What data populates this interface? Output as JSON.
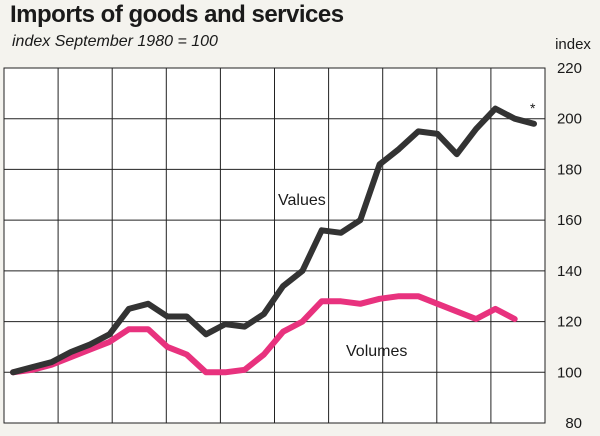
{
  "header": {
    "title": "Imports of goods and services",
    "subtitle": "index September 1980 = 100"
  },
  "chart_data": {
    "type": "line",
    "title": "Imports of goods and services",
    "subtitle": "index September 1980 = 100",
    "ylabel": "index",
    "ylim": [
      80,
      220
    ],
    "yticks": [
      80,
      100,
      120,
      140,
      160,
      180,
      200,
      220
    ],
    "y_axis_position": "right",
    "x_periods": 10,
    "grid": true,
    "annotation": "*",
    "series": [
      {
        "name": "Values",
        "color": "#333333",
        "values": [
          100,
          102,
          104,
          108,
          111,
          115,
          125,
          127,
          122,
          122,
          115,
          119,
          118,
          123,
          134,
          140,
          156,
          155,
          160,
          182,
          188,
          195,
          194,
          186,
          196,
          204,
          200,
          198
        ]
      },
      {
        "name": "Volumes",
        "color": "#e8327e",
        "values": [
          100,
          101,
          103,
          106,
          109,
          112,
          117,
          117,
          110,
          107,
          100,
          100,
          101,
          107,
          116,
          120,
          128,
          128,
          127,
          129,
          130,
          130,
          127,
          124,
          121,
          125,
          121
        ]
      }
    ]
  }
}
